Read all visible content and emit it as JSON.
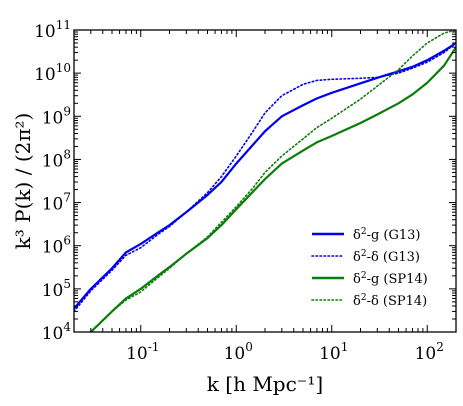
{
  "chart_data": {
    "type": "line",
    "title": "",
    "xlabel": "k [h Mpc⁻¹]",
    "ylabel": "k³ P(k) / (2π²)",
    "xscale": "log",
    "yscale": "log",
    "xlim": [
      0.02,
      200
    ],
    "ylim": [
      10000,
      100000000000
    ],
    "grid": false,
    "legend_position": "lower-right",
    "x_ticks": [
      {
        "base": "10",
        "exp": "-1",
        "value": 0.1
      },
      {
        "base": "10",
        "exp": "0",
        "value": 1
      },
      {
        "base": "10",
        "exp": "1",
        "value": 10
      },
      {
        "base": "10",
        "exp": "2",
        "value": 100
      }
    ],
    "y_ticks": [
      {
        "base": "10",
        "exp": "4",
        "value": 10000
      },
      {
        "base": "10",
        "exp": "5",
        "value": 100000
      },
      {
        "base": "10",
        "exp": "6",
        "value": 1000000
      },
      {
        "base": "10",
        "exp": "7",
        "value": 10000000
      },
      {
        "base": "10",
        "exp": "8",
        "value": 100000000
      },
      {
        "base": "10",
        "exp": "9",
        "value": 1000000000
      },
      {
        "base": "10",
        "exp": "10",
        "value": 10000000000
      },
      {
        "base": "10",
        "exp": "11",
        "value": 100000000000
      }
    ],
    "series": [
      {
        "name": "δ²-g (G13)",
        "color": "#0000ee",
        "style": "solid",
        "x": [
          0.02,
          0.03,
          0.05,
          0.07,
          0.1,
          0.15,
          0.2,
          0.3,
          0.5,
          0.7,
          1,
          1.5,
          2,
          3,
          5,
          7,
          10,
          20,
          30,
          50,
          70,
          100,
          150,
          200
        ],
        "y": [
          35000,
          100000,
          300000,
          700000,
          1100000,
          2000000,
          3000000,
          6000000,
          15000000,
          30000000,
          80000000,
          220000000,
          450000000,
          1000000000,
          1800000000,
          2600000000,
          3500000000,
          5800000000,
          7800000000,
          11000000000,
          14000000000,
          20000000000,
          33000000000,
          50000000000
        ]
      },
      {
        "name": "δ²-δ (G13)",
        "color": "#0000ee",
        "style": "dotted",
        "x": [
          0.02,
          0.03,
          0.05,
          0.07,
          0.1,
          0.15,
          0.2,
          0.3,
          0.5,
          0.7,
          1,
          1.5,
          2,
          3,
          5,
          7,
          10,
          20,
          30,
          50,
          70,
          100,
          150,
          200
        ],
        "y": [
          30000,
          90000,
          270000,
          600000,
          900000,
          1800000,
          2800000,
          6000000,
          17000000,
          40000000,
          120000000,
          450000000,
          1200000000,
          3000000000,
          5500000000,
          6800000000,
          7200000000,
          7600000000,
          8000000000,
          10000000000,
          13000000000,
          18000000000,
          30000000000,
          50000000000
        ]
      },
      {
        "name": "δ²-g (SP14)",
        "color": "#0a7d0a",
        "style": "solid",
        "x": [
          0.02,
          0.03,
          0.05,
          0.07,
          0.1,
          0.15,
          0.2,
          0.3,
          0.5,
          0.7,
          1,
          1.5,
          2,
          3,
          5,
          7,
          10,
          20,
          30,
          50,
          70,
          100,
          150,
          200
        ],
        "y": [
          5000,
          10000,
          30000,
          60000,
          100000,
          200000,
          320000,
          650000,
          1500000,
          3000000,
          7000000,
          18000000,
          35000000,
          80000000,
          160000000,
          250000000,
          350000000,
          700000000,
          1100000000,
          2000000000,
          3200000000,
          6000000000,
          15000000000,
          40000000000
        ]
      },
      {
        "name": "δ²-δ (SP14)",
        "color": "#0a7d0a",
        "style": "dotted",
        "x": [
          0.02,
          0.03,
          0.05,
          0.07,
          0.1,
          0.15,
          0.2,
          0.3,
          0.5,
          0.7,
          1,
          1.5,
          2,
          3,
          5,
          7,
          10,
          20,
          30,
          50,
          70,
          100,
          150,
          200
        ],
        "y": [
          5000,
          10000,
          30000,
          55000,
          85000,
          180000,
          300000,
          650000,
          1600000,
          3500000,
          8000000,
          22000000,
          50000000,
          120000000,
          300000000,
          550000000,
          900000000,
          2500000000,
          5000000000,
          12000000000,
          25000000000,
          50000000000,
          85000000000,
          100000000000
        ]
      }
    ],
    "legend": [
      {
        "label_prefix": "δ",
        "label_sup": "2",
        "label_suffix": "-g (G13)"
      },
      {
        "label_prefix": "δ",
        "label_sup": "2",
        "label_suffix": "-δ (G13)"
      },
      {
        "label_prefix": "δ",
        "label_sup": "2",
        "label_suffix": "-g (SP14)"
      },
      {
        "label_prefix": "δ",
        "label_sup": "2",
        "label_suffix": "-δ (SP14)"
      }
    ]
  }
}
